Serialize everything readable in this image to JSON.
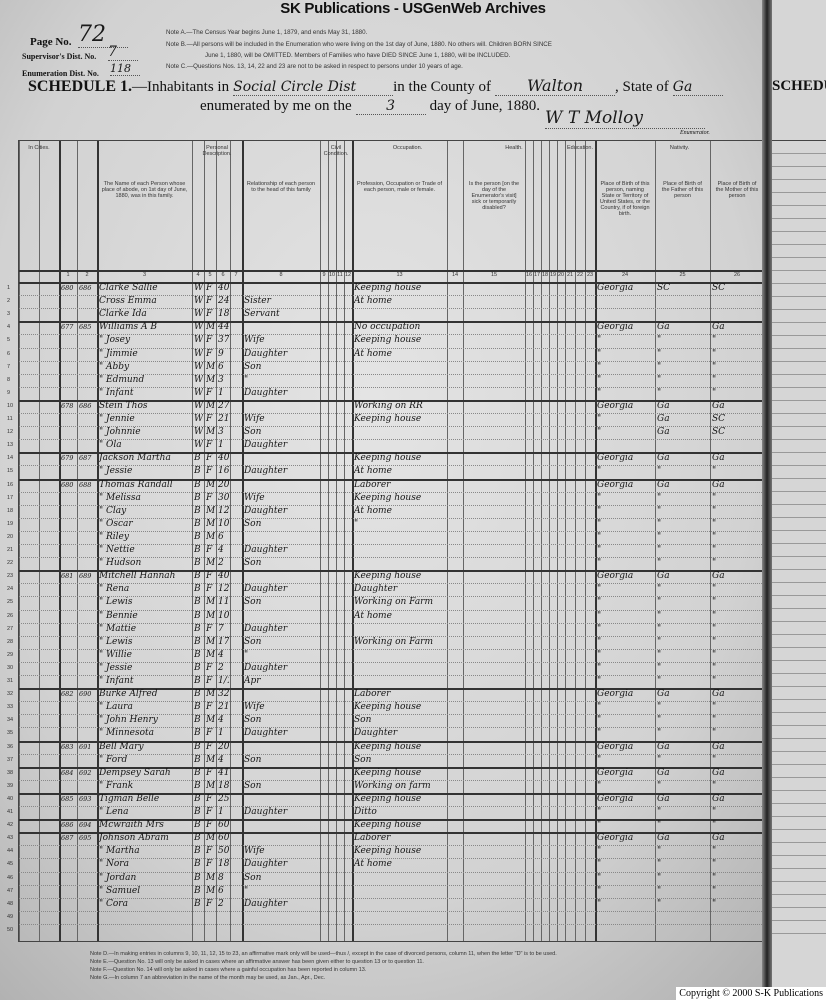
{
  "banner": "SK Publications - USGenWeb Archives",
  "header": {
    "page_no_label": "Page No.",
    "page_no": "72",
    "supervisor_label": "Supervisor's Dist. No.",
    "supervisor_no": "7",
    "enumeration_label": "Enumeration Dist. No.",
    "enumeration_no": "118",
    "note_a": "Note A.—The Census Year begins June 1, 1879, and ends May 31, 1880.",
    "note_b1": "Note B.—All persons will be included in the Enumeration who were living on the 1st day of June, 1880. No others will. Children BORN SINCE",
    "note_b2": "June 1, 1880, will be OMITTED. Members of Families who have DIED SINCE June 1, 1880, will be INCLUDED.",
    "note_c": "Note C.—Questions Nos. 13, 14, 22 and 23 are not to be asked in respect to persons under 10 years of age.",
    "schedule_label": "SCHEDULE 1.",
    "inhabitants_text": "—Inhabitants in",
    "district": "Social Circle Dist",
    "county_text": "in the County of",
    "county": "Walton",
    "state_text": ", State of",
    "state": "Ga",
    "enumerated_text": "enumerated by me on the",
    "day": "3",
    "day_text": "day of June, 1880.",
    "signature": "W T Molloy",
    "enumerator_label": "Enumerator."
  },
  "column_groups": [
    "In Cities.",
    "Personal Description.",
    "Civil Condition.",
    "Occupation.",
    "Health.",
    "Education.",
    "Nativity."
  ],
  "column_numbers": [
    "1",
    "2",
    "3",
    "4",
    "5",
    "6",
    "7",
    "8",
    "9",
    "10",
    "11",
    "12",
    "13",
    "14",
    "15",
    "16",
    "17",
    "18",
    "19",
    "20",
    "21",
    "22",
    "23",
    "24",
    "25",
    "26"
  ],
  "column_headers": {
    "name": "The Name of each Person whose place of abode, on 1st day of June, 1880, was in this family.",
    "relationship": "Relationship of each person to the head of this family",
    "occupation": "Profession, Occupation or Trade of each person, male or female.",
    "health": "Is the person [on the day of the Enumerator's visit] sick or temporarily disabled?",
    "birthplace": "Place of Birth of this person, naming State or Territory of United States, or the Country, if of foreign birth.",
    "father_birth": "Place of Birth of the Father of this person",
    "mother_birth": "Place of Birth of the Mother of this person"
  },
  "rows": [
    [
      "680",
      "686",
      "Clarke Sallie",
      "W",
      "F",
      "40",
      "",
      "Keeping house",
      "Georgia",
      "SC",
      "SC"
    ],
    [
      "",
      "",
      "Cross Emma",
      "W",
      "F",
      "24",
      "Sister",
      "At home",
      "",
      "",
      ""
    ],
    [
      "",
      "",
      "Clarke Ida",
      "W",
      "F",
      "18",
      "Servant",
      "",
      "",
      "",
      ""
    ],
    [
      "677",
      "685",
      "Williams A B",
      "W",
      "M",
      "44",
      "",
      "No occupation",
      "Georgia",
      "Ga",
      "Ga"
    ],
    [
      "",
      "",
      "\" Josey",
      "W",
      "F",
      "37",
      "Wife",
      "Keeping house",
      "\"",
      "\"",
      "\""
    ],
    [
      "",
      "",
      "\" Jimmie",
      "W",
      "F",
      "9",
      "Daughter",
      "At home",
      "\"",
      "\"",
      "\""
    ],
    [
      "",
      "",
      "\" Abby",
      "W",
      "M",
      "6",
      "Son",
      "",
      "\"",
      "\"",
      "\""
    ],
    [
      "",
      "",
      "\" Edmund",
      "W",
      "M",
      "3",
      "\"",
      "",
      "\"",
      "\"",
      "\""
    ],
    [
      "",
      "",
      "\" Infant",
      "W",
      "F",
      "1",
      "Daughter",
      "",
      "\"",
      "\"",
      "\""
    ],
    [
      "678",
      "686",
      "Stein Thos",
      "W",
      "M",
      "27",
      "",
      "Working on RR",
      "Georgia",
      "Ga",
      "Ga"
    ],
    [
      "",
      "",
      "\" Jennie",
      "W",
      "F",
      "21",
      "Wife",
      "Keeping house",
      "\"",
      "Ga",
      "SC"
    ],
    [
      "",
      "",
      "\" Johnnie",
      "W",
      "M",
      "3",
      "Son",
      "",
      "\"",
      "Ga",
      "SC"
    ],
    [
      "",
      "",
      "\" Ola",
      "W",
      "F",
      "1",
      "Daughter",
      "",
      "",
      "",
      ""
    ],
    [
      "679",
      "687",
      "Jackson Martha",
      "B",
      "F",
      "40",
      "",
      "Keeping house",
      "Georgia",
      "Ga",
      "Ga"
    ],
    [
      "",
      "",
      "\" Jessie",
      "B",
      "F",
      "16",
      "Daughter",
      "At home",
      "\"",
      "\"",
      "\""
    ],
    [
      "680",
      "688",
      "Thomas Randall",
      "B",
      "M",
      "20",
      "",
      "Laborer",
      "Georgia",
      "Ga",
      "Ga"
    ],
    [
      "",
      "",
      "\" Melissa",
      "B",
      "F",
      "30",
      "Wife",
      "Keeping house",
      "\"",
      "\"",
      "\""
    ],
    [
      "",
      "",
      "\" Clay",
      "B",
      "M",
      "12",
      "Daughter",
      "At home",
      "\"",
      "\"",
      "\""
    ],
    [
      "",
      "",
      "\" Oscar",
      "B",
      "M",
      "10",
      "Son",
      "\"",
      "\"",
      "\"",
      "\""
    ],
    [
      "",
      "",
      "\" Riley",
      "B",
      "M",
      "6",
      "",
      "",
      "\"",
      "\"",
      "\""
    ],
    [
      "",
      "",
      "\" Nettie",
      "B",
      "F",
      "4",
      "Daughter",
      "",
      "\"",
      "\"",
      "\""
    ],
    [
      "",
      "",
      "\" Hudson",
      "B",
      "M",
      "2",
      "Son",
      "",
      "\"",
      "\"",
      "\""
    ],
    [
      "681",
      "689",
      "Mitchell Hannah",
      "B",
      "F",
      "40",
      "",
      "Keeping house",
      "Georgia",
      "Ga",
      "Ga"
    ],
    [
      "",
      "",
      "\" Rena",
      "B",
      "F",
      "12",
      "Daughter",
      "Daughter",
      "\"",
      "\"",
      "\""
    ],
    [
      "",
      "",
      "\" Lewis",
      "B",
      "M",
      "11",
      "Son",
      "Working on Farm",
      "\"",
      "\"",
      "\""
    ],
    [
      "",
      "",
      "\" Bennie",
      "B",
      "M",
      "10",
      "",
      "At home",
      "\"",
      "\"",
      "\""
    ],
    [
      "",
      "",
      "\" Mattie",
      "B",
      "F",
      "7",
      "Daughter",
      "",
      "\"",
      "\"",
      "\""
    ],
    [
      "",
      "",
      "\" Lewis",
      "B",
      "M",
      "17",
      "Son",
      "Working on Farm",
      "\"",
      "\"",
      "\""
    ],
    [
      "",
      "",
      "\" Willie",
      "B",
      "M",
      "4",
      "\"",
      "",
      "\"",
      "\"",
      "\""
    ],
    [
      "",
      "",
      "\" Jessie",
      "B",
      "F",
      "2",
      "Daughter",
      "",
      "\"",
      "\"",
      "\""
    ],
    [
      "",
      "",
      "\" Infant",
      "B",
      "F",
      "1/12",
      "Apr",
      "",
      "\"",
      "\"",
      "\""
    ],
    [
      "682",
      "690",
      "Burke Alfred",
      "B",
      "M",
      "32",
      "",
      "Laborer",
      "Georgia",
      "Ga",
      "Ga"
    ],
    [
      "",
      "",
      "\" Laura",
      "B",
      "F",
      "21",
      "Wife",
      "Keeping house",
      "\"",
      "\"",
      "\""
    ],
    [
      "",
      "",
      "\" John Henry",
      "B",
      "M",
      "4",
      "Son",
      "Son",
      "\"",
      "\"",
      "\""
    ],
    [
      "",
      "",
      "\" Minnesota",
      "B",
      "F",
      "1",
      "Daughter",
      "Daughter",
      "\"",
      "\"",
      "\""
    ],
    [
      "683",
      "691",
      "Bell Mary",
      "B",
      "F",
      "20",
      "",
      "Keeping house",
      "Georgia",
      "Ga",
      "Ga"
    ],
    [
      "",
      "",
      "\" Ford",
      "B",
      "M",
      "4",
      "Son",
      "Son",
      "\"",
      "\"",
      "\""
    ],
    [
      "684",
      "692",
      "Dempsey Sarah",
      "B",
      "F",
      "41",
      "",
      "Keeping house",
      "Georgia",
      "Ga",
      "Ga"
    ],
    [
      "",
      "",
      "\" Frank",
      "B",
      "M",
      "18",
      "Son",
      "Working on farm",
      "\"",
      "\"",
      "\""
    ],
    [
      "685",
      "693",
      "Tigman Belle",
      "B",
      "F",
      "25",
      "",
      "Keeping house",
      "Georgia",
      "Ga",
      "Ga"
    ],
    [
      "",
      "",
      "\" Lena",
      "B",
      "F",
      "1",
      "Daughter",
      "Ditto",
      "\"",
      "\"",
      "\""
    ],
    [
      "686",
      "694",
      "Mcwraith Mrs",
      "B",
      "F",
      "60",
      "",
      "Keeping house",
      "\"",
      "\"",
      "\""
    ],
    [
      "687",
      "695",
      "Johnson Abram",
      "B",
      "M",
      "60",
      "",
      "Laborer",
      "Georgia",
      "Ga",
      "Ga"
    ],
    [
      "",
      "",
      "\" Martha",
      "B",
      "F",
      "50",
      "Wife",
      "Keeping house",
      "\"",
      "\"",
      "\""
    ],
    [
      "",
      "",
      "\" Nora",
      "B",
      "F",
      "18",
      "Daughter",
      "At home",
      "\"",
      "\"",
      "\""
    ],
    [
      "",
      "",
      "\" Jordan",
      "B",
      "M",
      "8",
      "Son",
      "",
      "\"",
      "\"",
      "\""
    ],
    [
      "",
      "",
      "\" Samuel",
      "B",
      "M",
      "6",
      "\"",
      "",
      "\"",
      "\"",
      "\""
    ],
    [
      "",
      "",
      "\" Cora",
      "B",
      "F",
      "2",
      "Daughter",
      "",
      "\"",
      "\"",
      "\""
    ]
  ],
  "footnote": [
    "Note D.—In making entries in columns 9, 10, 11, 12, 15 to 23, an affirmative mark only will be used—thus /, except in the case of divorced persons, column 11, when the letter \"D\" is to be used.",
    "Note E.—Question No. 13 will only be asked in cases where an affirmative answer has been given either to question 13 or to question 11.",
    "Note F.—Question No. 14 will only be asked in cases where a gainful occupation has been reported in column 13.",
    "Note G.—In column 7 an abbreviation in the name of the month may be used, as Jan., Apr., Dec."
  ],
  "copyright": "Copyright © 2000 S-K Publications"
}
